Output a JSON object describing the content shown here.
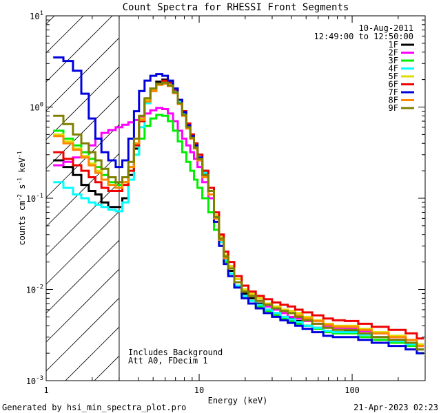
{
  "chart_data": {
    "type": "line",
    "title": "Count Spectra for RHESSI Front Segments",
    "xlabel": "Energy (keV)",
    "ylabel_parts": [
      "counts cm",
      "-2",
      " s",
      "-1",
      " keV",
      "-1"
    ],
    "xscale": "log",
    "yscale": "log",
    "xlim": [
      1,
      300
    ],
    "ylim": [
      0.001,
      10
    ],
    "x_ticks": [
      {
        "value": 10,
        "label": "10"
      },
      {
        "value": 100,
        "label": "100"
      }
    ],
    "y_ticks": [
      {
        "value": 0.001,
        "base": "10",
        "exp": "-3"
      },
      {
        "value": 0.01,
        "base": "10",
        "exp": "-2"
      },
      {
        "value": 0.1,
        "base": "10",
        "exp": "-1"
      },
      {
        "value": 1,
        "base": "10",
        "exp": "0"
      },
      {
        "value": 10,
        "base": "10",
        "exp": "1"
      }
    ],
    "x_ticks_extra": [
      {
        "value": 1,
        "label": "1"
      }
    ],
    "hatched_region": [
      1,
      3
    ],
    "legend_header": [
      "10-Aug-2011",
      "12:49:00 to 12:50:00"
    ],
    "annotations": [
      "Includes Background",
      "Att A0, FDecim 1"
    ],
    "footer_left": "Generated by hsi_min_spectra_plot.pro",
    "footer_right": "21-Apr-2023 02:23",
    "series": [
      {
        "name": "1F",
        "color": "#000000",
        "x": [
          1.2,
          1.4,
          1.6,
          1.8,
          2.0,
          2.2,
          2.4,
          2.7,
          3.0,
          3.3,
          3.6,
          3.9,
          4.2,
          4.6,
          5.0,
          5.5,
          6.0,
          6.5,
          7.0,
          7.5,
          8.0,
          8.5,
          9.0,
          9.5,
          10,
          11,
          12,
          13,
          14,
          15,
          16,
          18,
          20,
          22,
          25,
          28,
          32,
          36,
          40,
          45,
          50,
          60,
          70,
          80,
          100,
          120,
          150,
          200,
          250,
          280
        ],
        "values": [
          0.26,
          0.22,
          0.18,
          0.14,
          0.12,
          0.11,
          0.09,
          0.08,
          0.08,
          0.1,
          0.18,
          0.35,
          0.7,
          1.2,
          1.6,
          1.9,
          2.0,
          1.9,
          1.6,
          1.2,
          0.9,
          0.65,
          0.5,
          0.4,
          0.3,
          0.2,
          0.12,
          0.06,
          0.035,
          0.022,
          0.016,
          0.012,
          0.009,
          0.008,
          0.007,
          0.006,
          0.0055,
          0.005,
          0.0048,
          0.0045,
          0.004,
          0.0038,
          0.0035,
          0.0034,
          0.0035,
          0.0032,
          0.003,
          0.0028,
          0.0026,
          0.0022
        ]
      },
      {
        "name": "2F",
        "color": "#ff00ff",
        "x": [
          1.2,
          1.4,
          1.6,
          1.8,
          2.0,
          2.2,
          2.4,
          2.7,
          3.0,
          3.3,
          3.6,
          3.9,
          4.2,
          4.6,
          5.0,
          5.5,
          6.0,
          6.5,
          7.0,
          7.5,
          8.0,
          8.5,
          9.0,
          9.5,
          10,
          11,
          12,
          13,
          14,
          15,
          16,
          18,
          20,
          22,
          25,
          28,
          32,
          36,
          40,
          45,
          50,
          60,
          70,
          80,
          100,
          120,
          150,
          200,
          250,
          280
        ],
        "values": [
          0.23,
          0.25,
          0.28,
          0.32,
          0.38,
          0.45,
          0.52,
          0.56,
          0.6,
          0.64,
          0.68,
          0.72,
          0.78,
          0.85,
          0.92,
          0.98,
          0.95,
          0.85,
          0.7,
          0.55,
          0.45,
          0.38,
          0.32,
          0.27,
          0.22,
          0.15,
          0.1,
          0.065,
          0.04,
          0.026,
          0.018,
          0.013,
          0.01,
          0.0085,
          0.0075,
          0.0065,
          0.006,
          0.0055,
          0.005,
          0.0048,
          0.0045,
          0.0042,
          0.004,
          0.0038,
          0.0037,
          0.0035,
          0.0033,
          0.003,
          0.0028,
          0.0024
        ]
      },
      {
        "name": "3F",
        "color": "#00ee00",
        "x": [
          1.2,
          1.4,
          1.6,
          1.8,
          2.0,
          2.2,
          2.4,
          2.7,
          3.0,
          3.3,
          3.6,
          3.9,
          4.2,
          4.6,
          5.0,
          5.5,
          6.0,
          6.5,
          7.0,
          7.5,
          8.0,
          8.5,
          9.0,
          9.5,
          10,
          11,
          12,
          13,
          14,
          15,
          16,
          18,
          20,
          22,
          25,
          28,
          32,
          36,
          40,
          45,
          50,
          60,
          70,
          80,
          100,
          120,
          150,
          200,
          250,
          280
        ],
        "values": [
          0.55,
          0.45,
          0.38,
          0.32,
          0.27,
          0.22,
          0.18,
          0.15,
          0.14,
          0.15,
          0.2,
          0.3,
          0.45,
          0.62,
          0.75,
          0.82,
          0.8,
          0.7,
          0.55,
          0.42,
          0.32,
          0.25,
          0.2,
          0.16,
          0.13,
          0.1,
          0.07,
          0.045,
          0.03,
          0.02,
          0.015,
          0.011,
          0.0085,
          0.0075,
          0.0065,
          0.0058,
          0.0052,
          0.0048,
          0.0045,
          0.0042,
          0.004,
          0.0037,
          0.0034,
          0.0033,
          0.0033,
          0.003,
          0.0028,
          0.0026,
          0.0024,
          0.002
        ]
      },
      {
        "name": "4F",
        "color": "#00ffff",
        "x": [
          1.2,
          1.4,
          1.6,
          1.8,
          2.0,
          2.2,
          2.4,
          2.7,
          3.0,
          3.3,
          3.6,
          3.9,
          4.2,
          4.6,
          5.0,
          5.5,
          6.0,
          6.5,
          7.0,
          7.5,
          8.0,
          8.5,
          9.0,
          9.5,
          10,
          11,
          12,
          13,
          14,
          15,
          16,
          18,
          20,
          22,
          25,
          28,
          32,
          36,
          40,
          45,
          50,
          60,
          70,
          80,
          100,
          120,
          150,
          200,
          250,
          280
        ],
        "values": [
          0.15,
          0.13,
          0.11,
          0.1,
          0.09,
          0.085,
          0.08,
          0.075,
          0.072,
          0.09,
          0.16,
          0.3,
          0.6,
          1.1,
          1.5,
          1.8,
          1.9,
          1.8,
          1.5,
          1.15,
          0.85,
          0.62,
          0.48,
          0.38,
          0.28,
          0.19,
          0.12,
          0.06,
          0.033,
          0.021,
          0.015,
          0.011,
          0.0085,
          0.0075,
          0.0068,
          0.006,
          0.0055,
          0.005,
          0.0047,
          0.0044,
          0.004,
          0.0038,
          0.0035,
          0.0034,
          0.0034,
          0.0032,
          0.003,
          0.0027,
          0.0025,
          0.0022
        ]
      },
      {
        "name": "5F",
        "color": "#dddd00",
        "x": [
          1.2,
          1.4,
          1.6,
          1.8,
          2.0,
          2.2,
          2.4,
          2.7,
          3.0,
          3.3,
          3.6,
          3.9,
          4.2,
          4.6,
          5.0,
          5.5,
          6.0,
          6.5,
          7.0,
          7.5,
          8.0,
          8.5,
          9.0,
          9.5,
          10,
          11,
          12,
          13,
          14,
          15,
          16,
          18,
          20,
          22,
          25,
          28,
          32,
          36,
          40,
          45,
          50,
          60,
          70,
          80,
          100,
          120,
          150,
          200,
          250,
          280
        ],
        "values": [
          0.5,
          0.42,
          0.35,
          0.29,
          0.24,
          0.2,
          0.16,
          0.14,
          0.13,
          0.15,
          0.22,
          0.4,
          0.75,
          1.2,
          1.55,
          1.8,
          1.85,
          1.75,
          1.45,
          1.1,
          0.82,
          0.6,
          0.46,
          0.36,
          0.27,
          0.18,
          0.12,
          0.065,
          0.038,
          0.024,
          0.018,
          0.013,
          0.01,
          0.009,
          0.008,
          0.007,
          0.0065,
          0.006,
          0.0058,
          0.0055,
          0.005,
          0.0046,
          0.0042,
          0.004,
          0.004,
          0.0037,
          0.0034,
          0.0031,
          0.0028,
          0.0025
        ]
      },
      {
        "name": "6F",
        "color": "#ee0000",
        "x": [
          1.2,
          1.4,
          1.6,
          1.8,
          2.0,
          2.2,
          2.4,
          2.7,
          3.0,
          3.3,
          3.6,
          3.9,
          4.2,
          4.6,
          5.0,
          5.5,
          6.0,
          6.5,
          7.0,
          7.5,
          8.0,
          8.5,
          9.0,
          9.5,
          10,
          11,
          12,
          13,
          14,
          15,
          16,
          18,
          20,
          22,
          25,
          28,
          32,
          36,
          40,
          45,
          50,
          60,
          70,
          80,
          100,
          120,
          150,
          200,
          250,
          280
        ],
        "values": [
          0.32,
          0.27,
          0.23,
          0.2,
          0.17,
          0.15,
          0.13,
          0.12,
          0.12,
          0.14,
          0.2,
          0.38,
          0.7,
          1.15,
          1.5,
          1.8,
          1.95,
          1.85,
          1.55,
          1.2,
          0.9,
          0.66,
          0.5,
          0.4,
          0.3,
          0.2,
          0.13,
          0.07,
          0.04,
          0.026,
          0.02,
          0.014,
          0.011,
          0.0095,
          0.0085,
          0.0078,
          0.0072,
          0.0068,
          0.0065,
          0.006,
          0.0056,
          0.0052,
          0.0048,
          0.0046,
          0.0045,
          0.0042,
          0.0039,
          0.0036,
          0.0033,
          0.0029
        ]
      },
      {
        "name": "7F",
        "color": "#0000dd",
        "x": [
          1.2,
          1.4,
          1.6,
          1.8,
          2.0,
          2.2,
          2.4,
          2.7,
          3.0,
          3.3,
          3.6,
          3.9,
          4.2,
          4.6,
          5.0,
          5.5,
          6.0,
          6.5,
          7.0,
          7.5,
          8.0,
          8.5,
          9.0,
          9.5,
          10,
          11,
          12,
          13,
          14,
          15,
          16,
          18,
          20,
          22,
          25,
          28,
          32,
          36,
          40,
          45,
          50,
          60,
          70,
          80,
          100,
          120,
          150,
          200,
          250,
          280
        ],
        "values": [
          3.5,
          3.2,
          2.5,
          1.4,
          0.75,
          0.45,
          0.32,
          0.26,
          0.22,
          0.26,
          0.45,
          0.9,
          1.5,
          1.95,
          2.2,
          2.3,
          2.2,
          1.95,
          1.6,
          1.2,
          0.88,
          0.63,
          0.48,
          0.38,
          0.28,
          0.18,
          0.11,
          0.055,
          0.03,
          0.019,
          0.014,
          0.0105,
          0.008,
          0.007,
          0.0062,
          0.0055,
          0.005,
          0.0046,
          0.0043,
          0.004,
          0.0037,
          0.0034,
          0.0031,
          0.003,
          0.003,
          0.0028,
          0.0026,
          0.0024,
          0.0022,
          0.002
        ]
      },
      {
        "name": "8F",
        "color": "#ff8800",
        "x": [
          1.2,
          1.4,
          1.6,
          1.8,
          2.0,
          2.2,
          2.4,
          2.7,
          3.0,
          3.3,
          3.6,
          3.9,
          4.2,
          4.6,
          5.0,
          5.5,
          6.0,
          6.5,
          7.0,
          7.5,
          8.0,
          8.5,
          9.0,
          9.5,
          10,
          11,
          12,
          13,
          14,
          15,
          16,
          18,
          20,
          22,
          25,
          28,
          32,
          36,
          40,
          45,
          50,
          60,
          70,
          80,
          100,
          120,
          150,
          200,
          250,
          280
        ],
        "values": [
          0.48,
          0.4,
          0.34,
          0.28,
          0.23,
          0.19,
          0.16,
          0.14,
          0.13,
          0.15,
          0.22,
          0.4,
          0.72,
          1.15,
          1.5,
          1.75,
          1.8,
          1.7,
          1.42,
          1.08,
          0.8,
          0.58,
          0.45,
          0.35,
          0.26,
          0.17,
          0.11,
          0.06,
          0.035,
          0.022,
          0.017,
          0.012,
          0.0095,
          0.0085,
          0.0075,
          0.0068,
          0.0062,
          0.0058,
          0.0055,
          0.0052,
          0.0048,
          0.0045,
          0.0041,
          0.0039,
          0.0039,
          0.0036,
          0.0033,
          0.003,
          0.0028,
          0.0024
        ]
      },
      {
        "name": "9F",
        "color": "#808000",
        "x": [
          1.2,
          1.4,
          1.6,
          1.8,
          2.0,
          2.2,
          2.4,
          2.7,
          3.0,
          3.3,
          3.6,
          3.9,
          4.2,
          4.6,
          5.0,
          5.5,
          6.0,
          6.5,
          7.0,
          7.5,
          8.0,
          8.5,
          9.0,
          9.5,
          10,
          11,
          12,
          13,
          14,
          15,
          16,
          18,
          20,
          22,
          25,
          28,
          32,
          36,
          40,
          45,
          50,
          60,
          70,
          80,
          100,
          120,
          150,
          200,
          250,
          280
        ],
        "values": [
          0.8,
          0.65,
          0.5,
          0.4,
          0.32,
          0.26,
          0.21,
          0.17,
          0.15,
          0.17,
          0.25,
          0.45,
          0.8,
          1.25,
          1.6,
          1.8,
          1.85,
          1.72,
          1.45,
          1.1,
          0.82,
          0.6,
          0.46,
          0.36,
          0.27,
          0.18,
          0.12,
          0.062,
          0.036,
          0.023,
          0.017,
          0.012,
          0.0095,
          0.0085,
          0.0075,
          0.0068,
          0.0062,
          0.0058,
          0.0055,
          0.005,
          0.0046,
          0.0042,
          0.0038,
          0.0036,
          0.0036,
          0.0033,
          0.003,
          0.0028,
          0.0026,
          0.0022
        ]
      }
    ]
  }
}
